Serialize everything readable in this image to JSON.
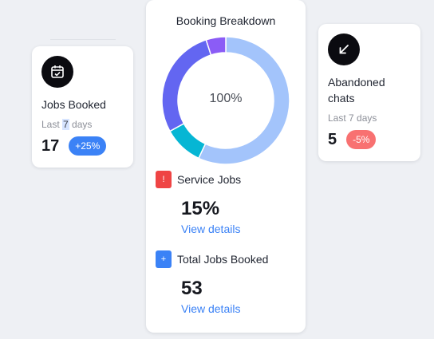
{
  "jobs_booked_card": {
    "title": "Jobs Booked",
    "period_prefix": "Last ",
    "period_highlight": "7",
    "period_suffix": " days",
    "value": "17",
    "change": "+25%"
  },
  "abandoned_chats_card": {
    "title": "Abandoned chats",
    "period": "Last 7 days",
    "value": "5",
    "change": "-5%"
  },
  "booking_breakdown": {
    "title": "Booking Breakdown",
    "center_label": "100%",
    "service_jobs": {
      "icon_text": "!",
      "label": "Service Jobs",
      "value": "15%",
      "link": "View details"
    },
    "total_jobs": {
      "icon_text": "+",
      "label": "Total Jobs Booked",
      "value": "53",
      "link": "View details"
    }
  },
  "chart_data": {
    "type": "pie",
    "center_label": "100%",
    "slices": [
      {
        "value": 57,
        "color": "#a3c4fb"
      },
      {
        "value": 10,
        "color": "#06b6d4"
      },
      {
        "value": 28,
        "color": "#6366f1"
      },
      {
        "value": 5,
        "color": "#8b5cf6"
      }
    ]
  },
  "colors": {
    "accent_blue": "#3b82f6",
    "danger_red": "#f87171",
    "alert_red": "#ef4444"
  },
  "icons": {
    "jobs_booked": "calendar-check-icon",
    "abandoned_chats": "arrow-down-left-icon"
  }
}
